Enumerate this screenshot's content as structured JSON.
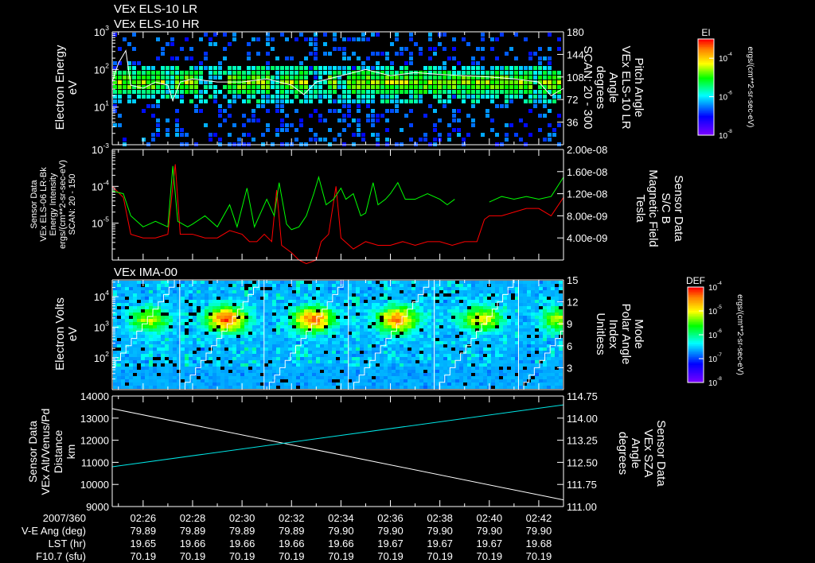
{
  "titles": {
    "line1": "VEx ELS-10 LR",
    "line2": "VEx ELS-10 HR",
    "panel3": "VEx IMA-00"
  },
  "colors": {
    "bg": "#000000",
    "axis": "#ffffff",
    "red": "#ff0000",
    "green": "#00ff00",
    "cyan": "#00e5e5",
    "white": "#ffffff"
  },
  "time_axis": {
    "range_min": [
      24.75,
      43.0
    ],
    "ticks": [
      "02:26",
      "02:28",
      "02:30",
      "02:32",
      "02:34",
      "02:36",
      "02:38",
      "02:40",
      "02:42"
    ],
    "tick_minutes": [
      26,
      28,
      30,
      32,
      34,
      36,
      38,
      40,
      42
    ],
    "rows": [
      {
        "label": "2007/360",
        "values": [
          "02:26",
          "02:28",
          "02:30",
          "02:32",
          "02:34",
          "02:36",
          "02:38",
          "02:40",
          "02:42"
        ]
      },
      {
        "label": "V-E Ang (deg)",
        "values": [
          "79.89",
          "79.89",
          "79.89",
          "79.89",
          "79.90",
          "79.90",
          "79.90",
          "79.90",
          "79.90"
        ]
      },
      {
        "label": "LST (hr)",
        "values": [
          "19.65",
          "19.66",
          "19.66",
          "19.66",
          "19.66",
          "19.67",
          "19.67",
          "19.67",
          "19.68"
        ]
      },
      {
        "label": "F10.7 (sfu)",
        "values": [
          "70.19",
          "70.19",
          "70.19",
          "70.19",
          "70.19",
          "70.19",
          "70.19",
          "70.19",
          "70.19"
        ]
      }
    ]
  },
  "chart_data": [
    {
      "type": "heatmap",
      "title": "VEx ELS-10 HR",
      "ylabel": [
        "Electron Energy",
        "eV"
      ],
      "ylim_log10": [
        0,
        3
      ],
      "yticks": [
        "10^3",
        "10^2",
        "10^1"
      ],
      "y2label": [
        "Pitch Angle",
        "VEx ELS-10 LR",
        "Angle",
        "degrees",
        "SCAN: 20 - 300"
      ],
      "y2lim": [
        0,
        180
      ],
      "y2ticks": [
        "180",
        "144",
        "108",
        "72",
        "36"
      ],
      "colorbar": {
        "label": "EI",
        "ticks": [
          "10^-4",
          "10^-6",
          "10^-8"
        ],
        "range_log10": [
          -8,
          -3
        ],
        "units": "ergs/(cm**2-sr-sec-eV)"
      },
      "band": {
        "center_ev": 50,
        "log10_intensity": -4.6,
        "gaps_min": [
          [
            26.9,
            27.2
          ],
          [
            28.2,
            29.4
          ],
          [
            31.0,
            31.4
          ],
          [
            32.6,
            33.4
          ],
          [
            33.8,
            34.2
          ],
          [
            41.6,
            41.9
          ]
        ]
      },
      "background_log10_intensity": -6.6,
      "pitch_angle_line": {
        "x": [
          24.75,
          25.0,
          25.3,
          25.5,
          26.0,
          26.5,
          27.0,
          27.2,
          27.5,
          28.0,
          29.0,
          30.0,
          31.0,
          32.0,
          32.5,
          33.0,
          34.0,
          35.0,
          36.0,
          37.0,
          38.0,
          39.0,
          40.0,
          41.0,
          42.0,
          42.5,
          43.0
        ],
        "y": [
          100,
          130,
          150,
          95,
          90,
          100,
          95,
          70,
          100,
          105,
          100,
          100,
          105,
          95,
          80,
          100,
          110,
          120,
          110,
          115,
          112,
          110,
          108,
          105,
          100,
          78,
          90
        ]
      }
    },
    {
      "type": "line",
      "ylabel": [
        "Sensor Data",
        "VEx ELS-06 LR-Bk",
        "Energy Intensity",
        "ergs/(cm**2-sr-sec-eV)",
        "SCAN: 20 - 150"
      ],
      "ylim_log10": [
        -6,
        -3
      ],
      "yticks": [
        "10^-3",
        "10^-4",
        "10^-5"
      ],
      "y2label": [
        "Sensor Data",
        "S/C B",
        "Magnetic Field",
        "Tesla"
      ],
      "y2lim": [
        0,
        2e-08
      ],
      "y2ticks": [
        "2.00e-08",
        "1.60e-08",
        "1.20e-08",
        "8.00e-09",
        "4.00e-09"
      ],
      "series": [
        {
          "name": "Energy Intensity",
          "axis": "left_log10",
          "color": "#ff0000",
          "x": [
            24.75,
            25.2,
            25.5,
            26,
            26.5,
            27,
            27.2,
            27.3,
            27.5,
            28,
            28.5,
            29,
            29.5,
            30,
            30.3,
            30.6,
            30.9,
            31.2,
            31.4,
            31.6,
            32,
            32.3,
            32.6,
            33,
            33.2,
            33.5,
            33.8,
            34,
            34.5,
            35,
            35.5,
            36,
            36.5,
            37,
            37.5,
            38,
            38.5,
            39,
            39.5,
            39.8,
            40,
            40.5,
            41,
            41.5,
            42,
            42.5,
            43
          ],
          "y": [
            -4.0,
            -4.3,
            -5.3,
            -5.4,
            -5.4,
            -5.3,
            -4.0,
            -3.4,
            -5.3,
            -5.3,
            -5.4,
            -5.4,
            -5.2,
            -5.3,
            -5.5,
            -5.5,
            -5.3,
            -5.5,
            -4.1,
            -5.6,
            -5.8,
            -6.0,
            -6.1,
            -6.0,
            -5.5,
            -5.3,
            -4.0,
            -5.4,
            -5.7,
            -5.5,
            -5.6,
            -5.6,
            -5.5,
            -5.6,
            -5.5,
            -5.5,
            -5.6,
            -5.5,
            -5.5,
            -4.9,
            -4.8,
            -4.8,
            -4.7,
            -4.6,
            -4.6,
            -4.8,
            -4.3
          ]
        },
        {
          "name": "Magnetic Field",
          "axis": "right",
          "color": "#00ff00",
          "x": [
            24.75,
            25.2,
            25.5,
            26,
            26.5,
            27,
            27.2,
            27.4,
            27.8,
            28,
            28.5,
            29,
            29.5,
            29.8,
            30.2,
            30.5,
            30.8,
            31,
            31.3,
            31.5,
            31.8,
            32,
            32.3,
            32.6,
            32.9,
            33.1,
            33.4,
            33.7,
            34,
            34.2,
            34.5,
            34.8,
            35,
            35.3,
            35.5,
            35.8,
            36,
            36.3,
            36.6,
            37,
            37.5,
            38,
            38.3,
            38.6,
            null,
            40,
            40.5,
            41,
            41.5,
            42,
            42.5,
            43
          ],
          "y": [
            1.25e-08,
            1.2e-08,
            8e-09,
            6e-09,
            7e-09,
            6e-09,
            1.7e-08,
            7e-09,
            6e-09,
            6.5e-09,
            8e-09,
            6e-09,
            1e-08,
            6e-09,
            1.3e-08,
            6e-09,
            9e-09,
            1.1e-08,
            8e-09,
            1.4e-08,
            6.5e-09,
            5.5e-09,
            6e-09,
            8e-09,
            1.2e-08,
            1.5e-08,
            1e-08,
            1.1e-08,
            1.3e-08,
            1.1e-08,
            1.2e-08,
            8e-09,
            8.5e-09,
            1.4e-08,
            1e-08,
            1.1e-08,
            1.2e-08,
            1.4e-08,
            1.1e-08,
            1.1e-08,
            1.2e-08,
            1.1e-08,
            1e-08,
            1.1e-08,
            null,
            1.05e-08,
            1.15e-08,
            1.1e-08,
            1.15e-08,
            1.1e-08,
            1.15e-08,
            1.5e-08
          ]
        }
      ]
    },
    {
      "type": "heatmap",
      "title": "VEx IMA-00",
      "ylabel": [
        "Electron Volts",
        "eV"
      ],
      "ylim_log10": [
        0.95,
        4.55
      ],
      "yticks": [
        "10^4",
        "10^3",
        "10^2"
      ],
      "y2label": [
        "Mode",
        "Polar Angle",
        "Index",
        "Unitless"
      ],
      "y2lim": [
        0,
        15
      ],
      "y2ticks": [
        "15",
        "12",
        "9",
        "6",
        "3"
      ],
      "colorbar": {
        "label": "DEF",
        "ticks": [
          "10^-4",
          "10^-5",
          "10^-6",
          "10^-7",
          "10^-8"
        ],
        "range_log10": [
          -8,
          -4
        ],
        "units": "ergs/(cm**2-sr-sec-eV)"
      },
      "scan_starts_min": [
        24.0,
        27.48,
        30.89,
        34.3,
        37.77,
        41.18
      ],
      "hot_spots": [
        {
          "t": 26.2,
          "ev": 2000,
          "log10": -5.2
        },
        {
          "t": 29.3,
          "ev": 2000,
          "log10": -4.3
        },
        {
          "t": 32.8,
          "ev": 2000,
          "log10": -4.4
        },
        {
          "t": 36.2,
          "ev": 2000,
          "log10": -4.5
        },
        {
          "t": 39.6,
          "ev": 2000,
          "log10": -5.0
        },
        {
          "t": 42.8,
          "ev": 2000,
          "log10": -5.3
        }
      ],
      "background_log10": -6.8
    },
    {
      "type": "line",
      "ylabel": [
        "Sensor Data",
        "VEx Alt/Venus/Pd",
        "Distance",
        "km"
      ],
      "ylim": [
        9000,
        14000
      ],
      "yticks": [
        "14000",
        "13000",
        "12000",
        "11000",
        "10000",
        "9000"
      ],
      "y2label": [
        "Sensor Data",
        "VEx SZA",
        "Angle",
        "degrees"
      ],
      "y2lim": [
        111.0,
        114.75
      ],
      "y2ticks": [
        "114.75",
        "114.00",
        "113.25",
        "112.50",
        "111.75",
        "111.00"
      ],
      "series": [
        {
          "name": "Distance",
          "axis": "left",
          "color": "#ffffff",
          "x": [
            24.75,
            43.0
          ],
          "y": [
            13430,
            9300
          ]
        },
        {
          "name": "SZA",
          "axis": "right",
          "color": "#00e5e5",
          "x": [
            24.75,
            43.0
          ],
          "y": [
            112.35,
            114.45
          ]
        }
      ]
    }
  ]
}
